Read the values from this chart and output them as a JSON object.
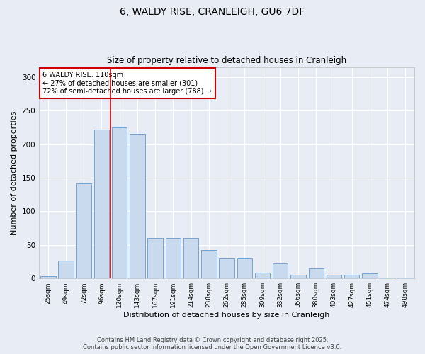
{
  "title": "6, WALDY RISE, CRANLEIGH, GU6 7DF",
  "subtitle": "Size of property relative to detached houses in Cranleigh",
  "xlabel": "Distribution of detached houses by size in Cranleigh",
  "ylabel": "Number of detached properties",
  "bar_labels": [
    "25sqm",
    "49sqm",
    "72sqm",
    "96sqm",
    "120sqm",
    "143sqm",
    "167sqm",
    "191sqm",
    "214sqm",
    "238sqm",
    "262sqm",
    "285sqm",
    "309sqm",
    "332sqm",
    "356sqm",
    "380sqm",
    "403sqm",
    "427sqm",
    "451sqm",
    "474sqm",
    "498sqm"
  ],
  "bar_values": [
    3,
    27,
    142,
    222,
    225,
    215,
    60,
    60,
    60,
    42,
    30,
    30,
    9,
    22,
    5,
    15,
    6,
    6,
    8,
    1,
    1
  ],
  "bar_color": "#c9d9ee",
  "bar_edge_color": "#6699cc",
  "background_color": "#e8edf5",
  "grid_color": "#ffffff",
  "vline_color": "#cc0000",
  "vline_x_index": 3.5,
  "annotation_text": "6 WALDY RISE: 110sqm\n← 27% of detached houses are smaller (301)\n72% of semi-detached houses are larger (788) →",
  "annotation_box_color": "#ffffff",
  "annotation_box_edge": "#cc0000",
  "ylim": [
    0,
    315
  ],
  "yticks": [
    0,
    50,
    100,
    150,
    200,
    250,
    300
  ],
  "footer_text": "Contains HM Land Registry data © Crown copyright and database right 2025.\nContains public sector information licensed under the Open Government Licence v3.0."
}
